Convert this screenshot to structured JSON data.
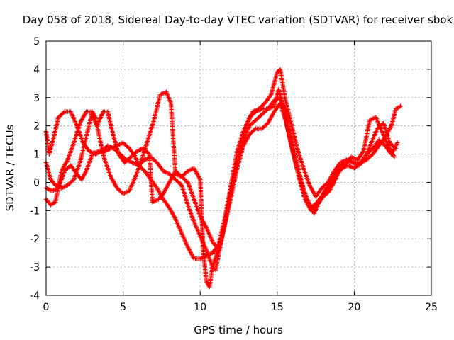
{
  "chart_data": {
    "type": "scatter",
    "title": "Day 058 of 2018, Sidereal Day-to-day VTEC variation (SDTVAR) for receiver sbok",
    "xlabel": "GPS time / hours",
    "ylabel": "SDTVAR / TECUs",
    "xlim": [
      0,
      25
    ],
    "ylim": [
      -4,
      5
    ],
    "xticks": [
      0,
      5,
      10,
      15,
      20,
      25
    ],
    "yticks": [
      -4,
      -3,
      -2,
      -1,
      0,
      1,
      2,
      3,
      4,
      5
    ],
    "grid": true,
    "marker": "plus",
    "color": "#ff0000",
    "series": [
      {
        "points": [
          [
            0,
            1.8
          ],
          [
            0.2,
            1.0
          ],
          [
            0.5,
            1.6
          ],
          [
            0.8,
            2.3
          ],
          [
            1.2,
            2.5
          ],
          [
            1.6,
            2.5
          ],
          [
            2.0,
            2.0
          ],
          [
            2.4,
            1.4
          ],
          [
            2.8,
            1.1
          ],
          [
            3.2,
            1.0
          ],
          [
            3.6,
            1.1
          ],
          [
            4.0,
            1.3
          ],
          [
            4.4,
            1.2
          ],
          [
            4.8,
            1.0
          ],
          [
            5.2,
            0.8
          ],
          [
            5.6,
            0.7
          ],
          [
            6.0,
            0.6
          ],
          [
            6.4,
            0.4
          ],
          [
            6.8,
            0.1
          ],
          [
            7.2,
            -0.2
          ],
          [
            7.6,
            -0.6
          ],
          [
            8.0,
            -0.9
          ],
          [
            8.4,
            -1.3
          ],
          [
            8.8,
            -1.8
          ],
          [
            9.2,
            -2.3
          ],
          [
            9.6,
            -2.7
          ],
          [
            10.0,
            -2.7
          ],
          [
            10.4,
            -2.6
          ],
          [
            10.8,
            -2.5
          ],
          [
            11.2,
            -2.2
          ],
          [
            11.6,
            -1.3
          ],
          [
            12.0,
            -0.3
          ],
          [
            12.4,
            0.7
          ],
          [
            12.8,
            1.5
          ],
          [
            13.2,
            2.0
          ],
          [
            13.6,
            2.2
          ],
          [
            14.0,
            2.4
          ],
          [
            14.4,
            2.6
          ],
          [
            14.8,
            2.9
          ],
          [
            15.2,
            3.0
          ],
          [
            15.6,
            2.4
          ],
          [
            16.0,
            1.4
          ],
          [
            16.4,
            0.4
          ],
          [
            16.8,
            -0.4
          ],
          [
            17.2,
            -0.9
          ],
          [
            17.6,
            -0.7
          ],
          [
            18.0,
            -0.4
          ],
          [
            18.4,
            -0.1
          ],
          [
            18.8,
            0.3
          ],
          [
            19.2,
            0.6
          ],
          [
            19.6,
            0.8
          ],
          [
            20.0,
            0.7
          ],
          [
            20.4,
            0.7
          ],
          [
            20.8,
            0.8
          ],
          [
            21.2,
            1.0
          ],
          [
            21.6,
            1.3
          ],
          [
            22.0,
            1.6
          ],
          [
            22.4,
            2.0
          ],
          [
            22.7,
            2.6
          ],
          [
            23.0,
            2.7
          ]
        ]
      },
      {
        "points": [
          [
            0,
            0.7
          ],
          [
            0.3,
            0.1
          ],
          [
            0.6,
            -0.1
          ],
          [
            1.0,
            -0.2
          ],
          [
            1.4,
            -0.1
          ],
          [
            1.8,
            0.1
          ],
          [
            2.2,
            0.7
          ],
          [
            2.6,
            1.6
          ],
          [
            3.0,
            2.5
          ],
          [
            3.2,
            2.3
          ],
          [
            3.5,
            1.5
          ],
          [
            3.8,
            0.8
          ],
          [
            4.2,
            0.2
          ],
          [
            4.6,
            -0.2
          ],
          [
            5.0,
            -0.4
          ],
          [
            5.4,
            -0.3
          ],
          [
            5.8,
            0.2
          ],
          [
            6.2,
            0.8
          ],
          [
            6.6,
            1.5
          ],
          [
            7.0,
            2.2
          ],
          [
            7.4,
            3.1
          ],
          [
            7.8,
            3.2
          ],
          [
            8.1,
            2.8
          ],
          [
            8.4,
            0.3
          ],
          [
            8.8,
            0.2
          ],
          [
            9.2,
            0.0
          ],
          [
            9.6,
            -0.6
          ],
          [
            10.0,
            -1.2
          ],
          [
            10.4,
            -1.6
          ],
          [
            10.8,
            -2.1
          ],
          [
            11.2,
            -2.4
          ],
          [
            11.6,
            -1.5
          ],
          [
            12.0,
            -0.5
          ],
          [
            12.4,
            0.5
          ],
          [
            12.8,
            1.3
          ],
          [
            13.2,
            1.7
          ],
          [
            13.6,
            1.9
          ],
          [
            14.0,
            1.9
          ],
          [
            14.4,
            2.1
          ],
          [
            14.8,
            2.5
          ],
          [
            15.2,
            2.8
          ],
          [
            15.6,
            2.1
          ],
          [
            16.0,
            1.1
          ],
          [
            16.4,
            0.2
          ],
          [
            16.8,
            -0.6
          ],
          [
            17.2,
            -1.0
          ],
          [
            17.6,
            -0.8
          ],
          [
            18.0,
            -0.5
          ],
          [
            18.4,
            -0.3
          ],
          [
            18.8,
            0.2
          ],
          [
            19.2,
            0.5
          ],
          [
            19.6,
            0.6
          ],
          [
            20.0,
            0.5
          ],
          [
            20.4,
            0.7
          ],
          [
            20.8,
            1.0
          ],
          [
            21.2,
            1.2
          ],
          [
            21.6,
            1.5
          ],
          [
            22.0,
            1.3
          ],
          [
            22.4,
            1.0
          ],
          [
            22.8,
            1.4
          ]
        ]
      },
      {
        "points": [
          [
            0,
            -0.2
          ],
          [
            0.4,
            -0.3
          ],
          [
            0.8,
            -0.2
          ],
          [
            1.2,
            0.4
          ],
          [
            1.6,
            0.6
          ],
          [
            2.0,
            0.3
          ],
          [
            2.3,
            0.1
          ],
          [
            2.6,
            0.4
          ],
          [
            3.0,
            1.0
          ],
          [
            3.4,
            1.1
          ],
          [
            3.8,
            1.1
          ],
          [
            4.2,
            1.2
          ],
          [
            4.6,
            1.3
          ],
          [
            5.0,
            1.4
          ],
          [
            5.4,
            1.2
          ],
          [
            5.8,
            0.9
          ],
          [
            6.0,
            0.6
          ],
          [
            6.4,
            0.8
          ],
          [
            6.8,
            0.9
          ],
          [
            7.2,
            0.7
          ],
          [
            7.6,
            0.4
          ],
          [
            8.0,
            0.3
          ],
          [
            8.4,
            0.1
          ],
          [
            8.8,
            -0.1
          ],
          [
            9.2,
            -0.8
          ],
          [
            9.6,
            -1.4
          ],
          [
            10.0,
            -1.9
          ],
          [
            10.4,
            -2.4
          ],
          [
            10.8,
            -3.0
          ],
          [
            11.0,
            -3.1
          ],
          [
            11.4,
            -2.0
          ],
          [
            11.8,
            -0.9
          ],
          [
            12.2,
            0.2
          ],
          [
            12.6,
            1.2
          ],
          [
            13.0,
            2.0
          ],
          [
            13.4,
            2.5
          ],
          [
            13.8,
            2.6
          ],
          [
            14.2,
            2.8
          ],
          [
            14.6,
            3.1
          ],
          [
            15.0,
            3.9
          ],
          [
            15.2,
            4.0
          ],
          [
            15.5,
            3.0
          ],
          [
            15.9,
            2.1
          ],
          [
            16.3,
            1.2
          ],
          [
            16.7,
            0.5
          ],
          [
            17.1,
            -0.1
          ],
          [
            17.5,
            -0.5
          ],
          [
            17.9,
            -0.2
          ],
          [
            18.3,
            0.0
          ],
          [
            18.7,
            0.4
          ],
          [
            19.1,
            0.7
          ],
          [
            19.5,
            0.8
          ],
          [
            19.9,
            0.7
          ],
          [
            20.3,
            0.6
          ],
          [
            20.7,
            0.8
          ],
          [
            21.1,
            1.4
          ],
          [
            21.5,
            1.9
          ],
          [
            21.9,
            2.1
          ],
          [
            22.3,
            1.4
          ],
          [
            22.7,
            1.2
          ]
        ]
      },
      {
        "points": [
          [
            0,
            -0.6
          ],
          [
            0.3,
            -0.8
          ],
          [
            0.6,
            -0.7
          ],
          [
            1.0,
            0.4
          ],
          [
            1.4,
            0.8
          ],
          [
            1.8,
            1.4
          ],
          [
            2.2,
            2.1
          ],
          [
            2.6,
            2.5
          ],
          [
            2.9,
            2.5
          ],
          [
            3.3,
            2.0
          ],
          [
            3.7,
            2.5
          ],
          [
            4.0,
            2.5
          ],
          [
            4.3,
            1.8
          ],
          [
            4.7,
            1.0
          ],
          [
            5.1,
            0.7
          ],
          [
            5.5,
            0.9
          ],
          [
            5.9,
            1.1
          ],
          [
            6.3,
            1.2
          ],
          [
            6.7,
            1.0
          ],
          [
            6.9,
            -0.7
          ],
          [
            7.3,
            -0.6
          ],
          [
            7.6,
            -0.4
          ],
          [
            8.0,
            0.0
          ],
          [
            8.4,
            0.4
          ],
          [
            8.8,
            0.2
          ],
          [
            9.2,
            0.4
          ],
          [
            9.6,
            0.5
          ],
          [
            10.0,
            0.1
          ],
          [
            10.2,
            -2.4
          ],
          [
            10.4,
            -3.5
          ],
          [
            10.6,
            -3.7
          ],
          [
            10.8,
            -3.0
          ],
          [
            11.2,
            -2.3
          ],
          [
            11.6,
            -1.3
          ],
          [
            12.0,
            -0.1
          ],
          [
            12.4,
            1.1
          ],
          [
            12.8,
            1.8
          ],
          [
            13.2,
            2.3
          ],
          [
            13.6,
            2.5
          ],
          [
            14.0,
            2.6
          ],
          [
            14.4,
            2.6
          ],
          [
            14.8,
            2.7
          ],
          [
            15.1,
            3.3
          ],
          [
            15.4,
            2.6
          ],
          [
            15.8,
            1.6
          ],
          [
            16.2,
            0.7
          ],
          [
            16.6,
            -0.1
          ],
          [
            17.0,
            -0.7
          ],
          [
            17.4,
            -1.1
          ],
          [
            17.8,
            -0.6
          ],
          [
            18.2,
            -0.2
          ],
          [
            18.6,
            -0.1
          ],
          [
            19.0,
            0.4
          ],
          [
            19.4,
            0.6
          ],
          [
            19.8,
            0.9
          ],
          [
            20.2,
            0.8
          ],
          [
            20.6,
            1.1
          ],
          [
            21.0,
            2.2
          ],
          [
            21.4,
            2.3
          ],
          [
            21.8,
            1.8
          ],
          [
            22.2,
            1.3
          ],
          [
            22.6,
            0.9
          ]
        ]
      }
    ]
  }
}
